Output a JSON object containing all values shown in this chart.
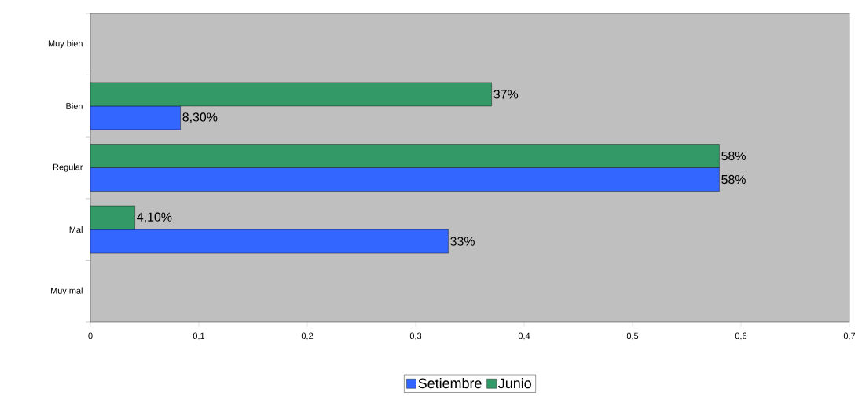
{
  "chart_data": {
    "type": "bar",
    "orientation": "horizontal",
    "categories": [
      "Muy bien",
      "Bien",
      "Regular",
      "Mal",
      "Muy mal"
    ],
    "series": [
      {
        "name": "Setiembre",
        "color": "#3366ff",
        "values": [
          null,
          0.083,
          0.58,
          0.33,
          null
        ],
        "value_labels": [
          null,
          "8,30%",
          "58%",
          "33%",
          null
        ]
      },
      {
        "name": "Junio",
        "color": "#339966",
        "values": [
          null,
          0.37,
          0.58,
          0.041,
          null
        ],
        "value_labels": [
          null,
          "37%",
          "58%",
          "4,10%",
          null
        ]
      }
    ],
    "xlim": [
      0,
      0.7
    ],
    "xticks": [
      0,
      {
        "value": 0.1,
        "label": "0,1"
      },
      {
        "value": 0.2,
        "label": "0,2"
      },
      {
        "value": 0.3,
        "label": "0,3"
      },
      {
        "value": 0.4,
        "label": "0,4"
      },
      {
        "value": 0.5,
        "label": "0,5"
      },
      {
        "value": 0.6,
        "label": "0,6"
      },
      {
        "value": 0.7,
        "label": "0,7"
      }
    ],
    "grid": false,
    "legend": "bottom"
  }
}
